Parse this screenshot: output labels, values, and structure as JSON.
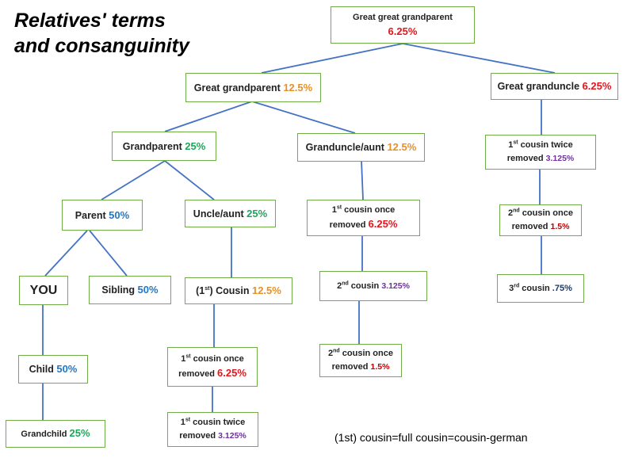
{
  "title": {
    "line1": "Relatives' terms",
    "line2": "and consanguinity"
  },
  "footnote": "(1st) cousin=full cousin=cousin-german",
  "colors": {
    "line": "#4472c4",
    "border": "#70ad47"
  },
  "nodes": {
    "ggp": {
      "line1": "Great great grandparent",
      "pct": "6.25%"
    },
    "gp2": {
      "label": "Great grandparent ",
      "pct": "12.5%"
    },
    "gu": {
      "label": "Great granduncle ",
      "pct": "6.25%"
    },
    "gp": {
      "label": "Grandparent ",
      "pct": "25%"
    },
    "gua": {
      "label": "Granduncle/aunt ",
      "pct": "12.5%"
    },
    "c1tw_r": {
      "sup": "st",
      "pre": "1",
      "line1": " cousin twice",
      "line2": "removed ",
      "pct": "3.125%"
    },
    "parent": {
      "label": "Parent ",
      "pct": "50%"
    },
    "ua": {
      "label": "Uncle/aunt ",
      "pct": "25%"
    },
    "c1or_m": {
      "sup": "st",
      "pre": "1",
      "line1": " cousin once",
      "line2": "removed ",
      "pct": "6.25%"
    },
    "c2or_r": {
      "sup": "nd",
      "pre": "2",
      "line1": " cousin once",
      "line2": "removed ",
      "pct": "1.5%"
    },
    "you": {
      "label": "YOU"
    },
    "sib": {
      "label": "Sibling ",
      "pct": "50%"
    },
    "cousin": {
      "open": "(1",
      "sup": "st",
      "close": ") Cousin ",
      "pct": "12.5%"
    },
    "c2_m": {
      "sup": "nd",
      "pre": "2",
      "label": " cousin ",
      "pct": "3.125%"
    },
    "c3_r": {
      "sup": "rd",
      "pre": "3",
      "label": " cousin ",
      "pct": ".75%"
    },
    "child": {
      "label": "Child ",
      "pct": "50%"
    },
    "c1or_l": {
      "sup": "st",
      "pre": "1",
      "line1": " cousin once",
      "line2": "removed ",
      "pct": "6.25%"
    },
    "c2or_m": {
      "sup": "nd",
      "pre": "2",
      "line1": " cousin once",
      "line2": "removed ",
      "pct": "1.5%"
    },
    "gchild": {
      "label": "Grandchild ",
      "pct": "25%"
    },
    "c1tw_l": {
      "sup": "st",
      "pre": "1",
      "line1": " cousin twice",
      "line2": "removed ",
      "pct": "3.125%"
    }
  }
}
